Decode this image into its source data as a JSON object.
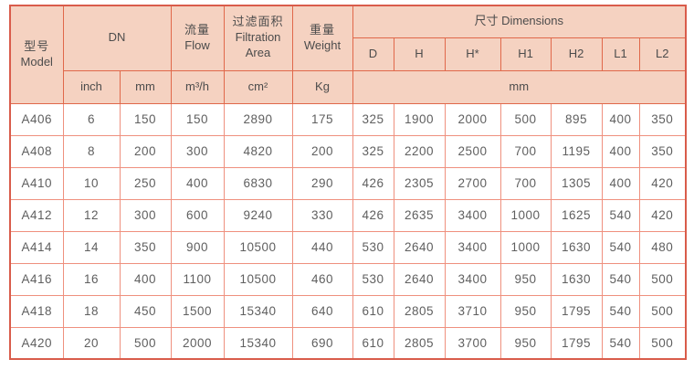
{
  "table": {
    "header": {
      "model_zh": "型号",
      "model_en": "Model",
      "dn": "DN",
      "flow_zh": "流量",
      "flow_en": "Flow",
      "filtration_zh": "过滤面积",
      "filtration_en_line1": "Filtration",
      "filtration_en_line2": "Area",
      "weight_zh": "重量",
      "weight_en": "Weight",
      "dimensions": "尺寸 Dimensions",
      "dim_columns": [
        "D",
        "H",
        "H*",
        "H1",
        "H2",
        "L1",
        "L2"
      ],
      "unit_inch": "inch",
      "unit_mm": "mm",
      "unit_flow": "m³/h",
      "unit_area": "cm²",
      "unit_weight": "Kg",
      "unit_dims": "mm"
    },
    "rows": [
      [
        "A406",
        "6",
        "150",
        "150",
        "2890",
        "175",
        "325",
        "1900",
        "2000",
        "500",
        "895",
        "400",
        "350"
      ],
      [
        "A408",
        "8",
        "200",
        "300",
        "4820",
        "200",
        "325",
        "2200",
        "2500",
        "700",
        "1195",
        "400",
        "350"
      ],
      [
        "A410",
        "10",
        "250",
        "400",
        "6830",
        "290",
        "426",
        "2305",
        "2700",
        "700",
        "1305",
        "400",
        "420"
      ],
      [
        "A412",
        "12",
        "300",
        "600",
        "9240",
        "330",
        "426",
        "2635",
        "3400",
        "1000",
        "1625",
        "540",
        "420"
      ],
      [
        "A414",
        "14",
        "350",
        "900",
        "10500",
        "440",
        "530",
        "2640",
        "3400",
        "1000",
        "1630",
        "540",
        "480"
      ],
      [
        "A416",
        "16",
        "400",
        "1100",
        "10500",
        "460",
        "530",
        "2640",
        "3400",
        "950",
        "1630",
        "540",
        "500"
      ],
      [
        "A418",
        "18",
        "450",
        "1500",
        "15340",
        "640",
        "610",
        "2805",
        "3710",
        "950",
        "1795",
        "540",
        "500"
      ],
      [
        "A420",
        "20",
        "500",
        "2000",
        "15340",
        "690",
        "610",
        "2805",
        "3700",
        "950",
        "1795",
        "540",
        "500"
      ]
    ]
  },
  "colors": {
    "header_bg": "#f5d2c1",
    "header_border": "#e0684a",
    "grid_border": "#ef907e",
    "outer_border": "#d95c4b",
    "header_text": "#4c4c4c",
    "cell_text": "#5f5f5f"
  }
}
